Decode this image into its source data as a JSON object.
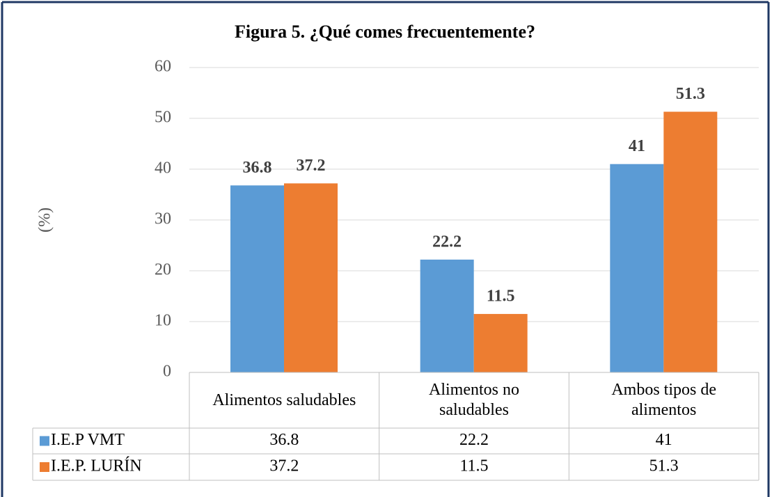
{
  "chart_data": {
    "type": "bar",
    "title": "Figura 5. ¿Qué comes frecuentemente?",
    "y_label": "(%)",
    "categories": [
      "Alimentos saludables",
      "Alimentos no saludables",
      "Ambos tipos de alimentos"
    ],
    "series": [
      {
        "name": "I.E.P VMT",
        "color": "#5b9bd5",
        "values": [
          36.8,
          22.2,
          41
        ]
      },
      {
        "name": "I.E.P. LURÍN",
        "color": "#ed7d31",
        "values": [
          37.2,
          11.5,
          51.3
        ]
      }
    ],
    "ylim": [
      0,
      60
    ],
    "yticks": [
      0,
      10,
      20,
      30,
      40,
      50,
      60
    ],
    "grid": true
  }
}
